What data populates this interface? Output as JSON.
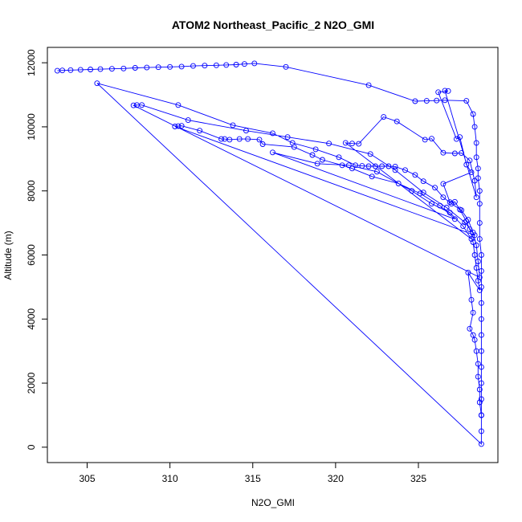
{
  "chart_data": {
    "type": "line",
    "title": "ATOM2 Northeast_Pacific_2 N2O_GMI",
    "xlabel": "N2O_GMI",
    "ylabel": "Altitude (m)",
    "xlim": [
      302.6,
      329.8
    ],
    "ylim": [
      -480,
      12480
    ],
    "x_ticks": [
      305,
      310,
      315,
      320,
      325
    ],
    "y_ticks": [
      0,
      2000,
      4000,
      6000,
      8000,
      10000,
      12000
    ],
    "grid": false,
    "color": "#0000ff",
    "marker": "open-circle",
    "points": [
      [
        303.2,
        11750
      ],
      [
        303.5,
        11760
      ],
      [
        304,
        11770
      ],
      [
        304.6,
        11780
      ],
      [
        305.2,
        11790
      ],
      [
        305.8,
        11800
      ],
      [
        306.5,
        11810
      ],
      [
        307.2,
        11820
      ],
      [
        307.9,
        11840
      ],
      [
        308.6,
        11850
      ],
      [
        309.3,
        11860
      ],
      [
        310,
        11870
      ],
      [
        310.7,
        11880
      ],
      [
        311.4,
        11900
      ],
      [
        312.1,
        11910
      ],
      [
        312.8,
        11920
      ],
      [
        313.4,
        11930
      ],
      [
        314,
        11940
      ],
      [
        314.5,
        11960
      ],
      [
        315.1,
        11980
      ],
      [
        317,
        11870
      ],
      [
        322,
        11300
      ],
      [
        324.8,
        10800
      ],
      [
        325.5,
        10810
      ],
      [
        326.1,
        10820
      ],
      [
        326.6,
        10830
      ],
      [
        327.9,
        10810
      ],
      [
        328.3,
        10400
      ],
      [
        328.4,
        10000
      ],
      [
        328.5,
        9500
      ],
      [
        328.5,
        9050
      ],
      [
        328.6,
        8700
      ],
      [
        328.6,
        8400
      ],
      [
        328.7,
        8000
      ],
      [
        328.7,
        7600
      ],
      [
        328.7,
        7000
      ],
      [
        328.7,
        6500
      ],
      [
        328.8,
        6000
      ],
      [
        328.8,
        5500
      ],
      [
        328.8,
        5000
      ],
      [
        328.8,
        4500
      ],
      [
        328.8,
        4000
      ],
      [
        328.8,
        3500
      ],
      [
        328.8,
        3000
      ],
      [
        328.8,
        2500
      ],
      [
        328.8,
        2000
      ],
      [
        328.8,
        1500
      ],
      [
        328.8,
        1000
      ],
      [
        328.8,
        500
      ],
      [
        328.8,
        100
      ],
      [
        305.6,
        11360
      ],
      [
        310.5,
        10680
      ],
      [
        313.8,
        10050
      ],
      [
        316.2,
        9800
      ],
      [
        317.4,
        9500
      ],
      [
        318.8,
        9300
      ],
      [
        320.2,
        9050
      ],
      [
        321.2,
        8800
      ],
      [
        321.6,
        8780
      ],
      [
        322,
        8770
      ],
      [
        322.4,
        8770
      ],
      [
        322.8,
        8770
      ],
      [
        323.2,
        8770
      ],
      [
        323.6,
        8760
      ],
      [
        324.2,
        8650
      ],
      [
        324.8,
        8500
      ],
      [
        325.3,
        8300
      ],
      [
        326,
        8100
      ],
      [
        326.5,
        7800
      ],
      [
        327,
        7600
      ],
      [
        327.6,
        7400
      ],
      [
        328,
        7100
      ],
      [
        328.3,
        6700
      ],
      [
        328.5,
        6300
      ],
      [
        328.6,
        5800
      ],
      [
        328.7,
        5300
      ],
      [
        307.8,
        10670
      ],
      [
        308,
        10680
      ],
      [
        308.3,
        10680
      ],
      [
        311.1,
        10210
      ],
      [
        314.6,
        9880
      ],
      [
        317.1,
        9680
      ],
      [
        319.6,
        9480
      ],
      [
        322.1,
        9150
      ],
      [
        323.6,
        8650
      ],
      [
        325.3,
        7950
      ],
      [
        326.7,
        7480
      ],
      [
        327.8,
        7020
      ],
      [
        328.4,
        6620
      ],
      [
        310.3,
        10010
      ],
      [
        310.5,
        10020
      ],
      [
        310.7,
        10030
      ],
      [
        311.8,
        9880
      ],
      [
        313.1,
        9620
      ],
      [
        313.3,
        9620
      ],
      [
        313.6,
        9600
      ],
      [
        314.2,
        9620
      ],
      [
        314.7,
        9620
      ],
      [
        315.4,
        9600
      ],
      [
        315.6,
        9460
      ],
      [
        317.5,
        9370
      ],
      [
        318.6,
        9120
      ],
      [
        319.2,
        8970
      ],
      [
        320.4,
        8800
      ],
      [
        321,
        8700
      ],
      [
        322.2,
        8450
      ],
      [
        323.8,
        8230
      ],
      [
        325.1,
        7920
      ],
      [
        326.3,
        7540
      ],
      [
        327.2,
        7120
      ],
      [
        316.2,
        9200
      ],
      [
        318.9,
        8850
      ],
      [
        320.8,
        8800
      ],
      [
        322.5,
        8600
      ],
      [
        324.6,
        8000
      ],
      [
        325.8,
        7600
      ],
      [
        326.9,
        7320
      ],
      [
        327.7,
        6900
      ],
      [
        328.2,
        6500
      ],
      [
        320.6,
        9500
      ],
      [
        321,
        9480
      ],
      [
        321.4,
        9470
      ],
      [
        322.9,
        10310
      ],
      [
        323.7,
        10170
      ],
      [
        325.4,
        9600
      ],
      [
        325.8,
        9630
      ],
      [
        326.5,
        9190
      ],
      [
        327.2,
        9170
      ],
      [
        327.6,
        9180
      ],
      [
        328.1,
        8950
      ],
      [
        328.4,
        8320
      ],
      [
        328.5,
        7800
      ],
      [
        326.6,
        11130
      ],
      [
        326.8,
        11120
      ],
      [
        326.2,
        11080
      ],
      [
        327.3,
        9620
      ],
      [
        327.5,
        9680
      ],
      [
        327.9,
        8820
      ],
      [
        328.2,
        8580
      ],
      [
        326.5,
        8220
      ],
      [
        326.9,
        7650
      ],
      [
        327.2,
        7660
      ],
      [
        327.5,
        7420
      ],
      [
        327.9,
        7050
      ],
      [
        328.1,
        6800
      ],
      [
        328.3,
        6400
      ],
      [
        328.4,
        6000
      ],
      [
        328.5,
        5600
      ],
      [
        328.6,
        5200
      ],
      [
        328.7,
        4900
      ],
      [
        328,
        5450
      ],
      [
        328.2,
        4600
      ],
      [
        328.3,
        4200
      ],
      [
        328.1,
        3700
      ],
      [
        328.3,
        3500
      ],
      [
        328.4,
        3350
      ],
      [
        328.5,
        3000
      ],
      [
        328.6,
        2600
      ],
      [
        328.6,
        2200
      ],
      [
        328.7,
        1800
      ],
      [
        328.7,
        1400
      ],
      [
        328.8,
        1000
      ]
    ]
  }
}
